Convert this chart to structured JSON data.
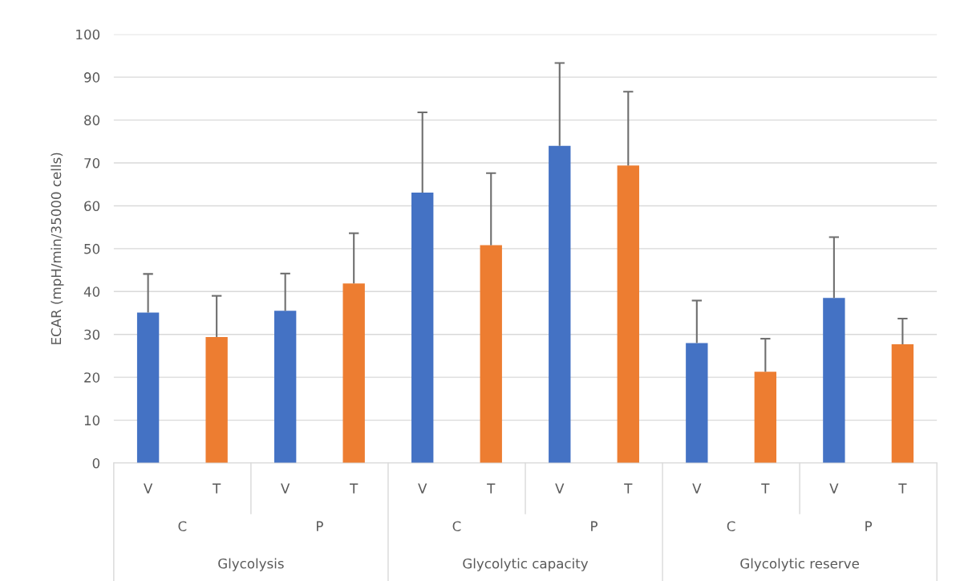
{
  "chart_data": {
    "type": "bar",
    "ylabel": "ECAR (mpH/min/35000 cells)",
    "categories": [
      "V",
      "T",
      "V",
      "T",
      "V",
      "T",
      "V",
      "T",
      "V",
      "T",
      "V",
      "T"
    ],
    "values": [
      35.1,
      29.4,
      35.5,
      41.9,
      63.1,
      50.8,
      74.0,
      69.4,
      28.0,
      21.3,
      38.5,
      27.7
    ],
    "colors": [
      "#4472c4",
      "#ed7d31",
      "#4472c4",
      "#ed7d31",
      "#4472c4",
      "#ed7d31",
      "#4472c4",
      "#ed7d31",
      "#4472c4",
      "#ed7d31",
      "#4472c4",
      "#ed7d31"
    ],
    "errors": [
      [
        35.1,
        44.1
      ],
      [
        29.4,
        39.0
      ],
      [
        35.5,
        44.2
      ],
      [
        41.9,
        53.6
      ],
      [
        63.1,
        81.8
      ],
      [
        50.8,
        67.6
      ],
      [
        74.0,
        93.3
      ],
      [
        69.4,
        86.6
      ],
      [
        28.0,
        37.9
      ],
      [
        21.3,
        29.0
      ],
      [
        38.5,
        52.7
      ],
      [
        27.7,
        33.7
      ]
    ],
    "annotations": [
      "C",
      "P",
      "C",
      "P",
      "C",
      "P",
      "Glycolysis",
      "Glycolytic capacity",
      "Glycolytic reserve"
    ],
    "ylim": [
      0,
      100
    ],
    "yticks": [
      0,
      10,
      20,
      30,
      40,
      50,
      60,
      70,
      80,
      90,
      100
    ],
    "grid": "y",
    "legend": false
  }
}
